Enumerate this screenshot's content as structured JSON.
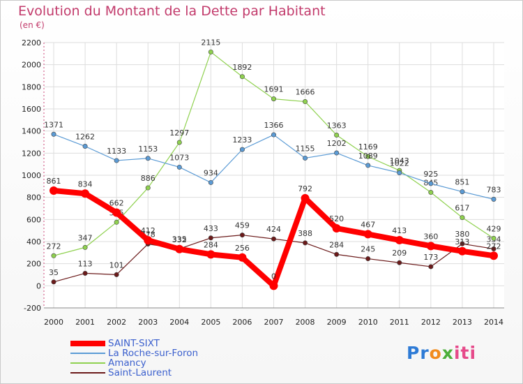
{
  "title": "Evolution du Montant de la Dette par Habitant",
  "subtitle": "(en €)",
  "logo": {
    "part1": "Pr",
    "part2": "o",
    "part3": "x",
    "part4": "iti"
  },
  "colors": {
    "title": "#c23a6b",
    "legend_text": "#3a5fcd",
    "grid": "#dddddd"
  },
  "chart_data": {
    "type": "line",
    "title": "Evolution du Montant de la Dette par Habitant",
    "ylabel": "(en €)",
    "xlabel": "",
    "x": [
      "2000",
      "2001",
      "2002",
      "2003",
      "2004",
      "2005",
      "2006",
      "2007",
      "2008",
      "2009",
      "2010",
      "2011",
      "2012",
      "2013",
      "2014"
    ],
    "yticks": [
      "-200",
      "0",
      "200",
      "400",
      "600",
      "800",
      "1000",
      "1200",
      "1400",
      "1600",
      "1800",
      "2000",
      "2200"
    ],
    "ylim": [
      -200,
      2200
    ],
    "grid": true,
    "legend_position": "bottom-left",
    "series": [
      {
        "name": "Saint-Laurent",
        "color": "#6b1a1a",
        "values": [
          35,
          113,
          101,
          378,
          335,
          433,
          459,
          424,
          388,
          284,
          245,
          209,
          173,
          380,
          334
        ],
        "labels": [
          "35",
          "113",
          "101",
          "378",
          "335",
          "433",
          "459",
          "424",
          "388",
          "284",
          "245",
          "209",
          "173",
          "380",
          "334"
        ]
      },
      {
        "name": "Amancy",
        "color": "#8fd14f",
        "values": [
          272,
          347,
          575,
          886,
          1297,
          2115,
          1892,
          1691,
          1666,
          1363,
          1169,
          1043,
          845,
          617,
          429
        ],
        "labels": [
          "272",
          "347",
          "575",
          "886",
          "1297",
          "2115",
          "1892",
          "1691",
          "1666",
          "1363",
          "1169",
          "1043",
          "845",
          "617",
          "429"
        ]
      },
      {
        "name": "La Roche-sur-Foron",
        "color": "#5b9bd5",
        "values": [
          1371,
          1262,
          1133,
          1153,
          1073,
          934,
          1233,
          1366,
          1155,
          1202,
          1089,
          1022,
          925,
          851,
          783
        ],
        "labels": [
          "1371",
          "1262",
          "1133",
          "1153",
          "1073",
          "934",
          "1233",
          "1366",
          "1155",
          "1202",
          "1089",
          "1022",
          "925",
          "851",
          "783"
        ]
      },
      {
        "name": "SAINT-SIXT",
        "color": "#ff0000",
        "values": [
          861,
          834,
          662,
          412,
          332,
          284,
          256,
          0,
          792,
          520,
          467,
          413,
          360,
          313,
          272
        ],
        "labels": [
          "861",
          "834",
          "662",
          "412",
          "332",
          "284",
          "256",
          "0",
          "792",
          "520",
          "467",
          "413",
          "360",
          "313",
          "272"
        ]
      }
    ]
  },
  "legend": [
    {
      "label": "SAINT-SIXT",
      "color": "#ff0000"
    },
    {
      "label": "La Roche-sur-Foron",
      "color": "#5b9bd5"
    },
    {
      "label": "Amancy",
      "color": "#8fd14f"
    },
    {
      "label": "Saint-Laurent",
      "color": "#6b1a1a"
    }
  ]
}
